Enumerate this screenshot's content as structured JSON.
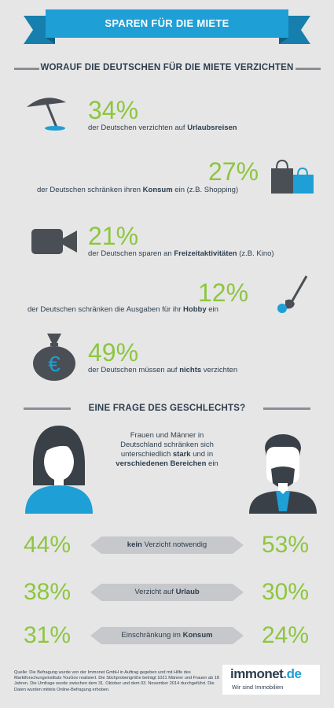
{
  "banner": {
    "title": "SPAREN FÜR DIE MIETE"
  },
  "section1": {
    "title": "WORAUF DIE DEUTSCHEN FÜR DIE MIETE VERZICHTEN"
  },
  "stats": [
    {
      "percent": "34%",
      "pre": "der Deutschen verzichten auf ",
      "bold": "Urlaubsreisen",
      "post": "",
      "icon": "beach-umbrella-icon"
    },
    {
      "percent": "27%",
      "pre": "der Deutschen schränken ihren ",
      "bold": "Konsum",
      "post": " ein (z.B. Shopping)",
      "icon": "shopping-bags-icon"
    },
    {
      "percent": "21%",
      "pre": "der Deutschen sparen an ",
      "bold": "Freizeitaktivitäten",
      "post": " (z.B. Kino)",
      "icon": "video-camera-icon"
    },
    {
      "percent": "12%",
      "pre": "der Deutschen schränken die Ausgaben für ihr ",
      "bold": "Hobby",
      "post": " ein",
      "icon": "golf-club-icon"
    },
    {
      "percent": "49%",
      "pre": "der Deutschen müssen auf ",
      "bold": "nichts",
      "post": " verzichten",
      "icon": "euro-money-bag-icon"
    }
  ],
  "section2": {
    "title": "EINE FRAGE DES GESCHLECHTS?",
    "text_1": "Frauen und Männer in Deutschland schränken sich unterschiedlich ",
    "bold_1": "stark",
    "text_2": " und in ",
    "bold_2": "verschiedenen Bereichen",
    "text_3": " ein"
  },
  "comparison": [
    {
      "women": "44%",
      "men": "53%",
      "label_bold_pre": "kein",
      "label_normal": " Verzicht notwendig",
      "label_bold_post": ""
    },
    {
      "women": "38%",
      "men": "30%",
      "label_bold_pre": "",
      "label_normal": "Verzicht auf ",
      "label_bold_post": "Urlaub"
    },
    {
      "women": "31%",
      "men": "24%",
      "label_bold_pre": "",
      "label_normal": "Einschränkung im ",
      "label_bold_post": "Konsum"
    }
  ],
  "footer": {
    "source": "Quelle: Die Befragung wurde von der Immonet GmbH in Auftrag gegeben und mit Hilfe des Marktforschungsinstituts YouGov realisiert. Die Stichprobengröße beträgt 1021 Männer und Frauen ab 18 Jahren. Die Umfrage wurde zwischen dem 31. Oktober und dem 03. November 2014 durchgeführt. Die Daten wurden mittels Online-Befragung erhoben."
  },
  "logo": {
    "name_main": "immonet",
    "name_tld": ".de",
    "tagline": "Wir sind Immobilien"
  },
  "colors": {
    "accent_green": "#8dc63f",
    "brand_blue": "#1e9fd6",
    "dark_navy": "#2e3e4e",
    "icon_gray": "#4a4f55",
    "background": "#e6e6e6"
  }
}
